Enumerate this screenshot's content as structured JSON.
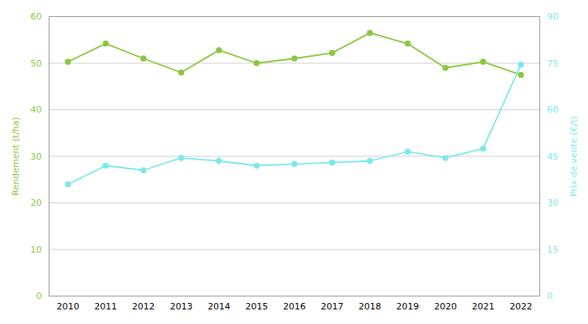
{
  "chart_data": {
    "type": "line",
    "x": [
      2010,
      2011,
      2012,
      2013,
      2014,
      2015,
      2016,
      2017,
      2018,
      2019,
      2020,
      2021,
      2022
    ],
    "xlim": [
      2009.5,
      2022.5
    ],
    "xticks": [
      2010,
      2011,
      2012,
      2013,
      2014,
      2015,
      2016,
      2017,
      2018,
      2019,
      2020,
      2021,
      2022
    ],
    "ylabel": "Rendement (t/ha)",
    "ylim": [
      0,
      60
    ],
    "yticks": [
      0,
      10,
      20,
      30,
      40,
      50,
      60
    ],
    "y2label": "Prix de vente (€/t)",
    "y2lim": [
      0,
      90
    ],
    "y2ticks": [
      0,
      15,
      30,
      45,
      60,
      75,
      90
    ],
    "grid": true,
    "series": [
      {
        "color": "#8dc63f",
        "marker": "circle",
        "axis": "y",
        "values": [
          50.3,
          54.2,
          51.0,
          48.0,
          52.8,
          50.0,
          51.0,
          52.2,
          56.5,
          54.2,
          49.0,
          50.3,
          47.5
        ]
      },
      {
        "color": "#7de8e8",
        "marker": "circle",
        "axis": "y2",
        "values": [
          36.0,
          42.0,
          40.5,
          44.5,
          43.5,
          42.0,
          42.5,
          43.0,
          43.5,
          46.5,
          44.5,
          47.5,
          74.5
        ]
      }
    ]
  }
}
